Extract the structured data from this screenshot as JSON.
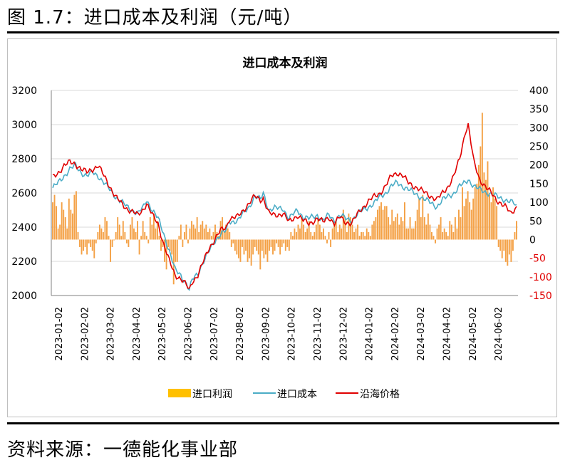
{
  "page": {
    "figure_title": "图 1.7：进口成本及利润（元/吨）",
    "source_note": "资料来源：一德能化事业部"
  },
  "chart_data": {
    "type": "line",
    "title": "进口成本及利润",
    "legend_position": "bottom",
    "y_left": {
      "min": 2000,
      "max": 3200,
      "ticks": [
        2000,
        2200,
        2400,
        2600,
        2800,
        3000,
        3200
      ]
    },
    "y_right": {
      "min": -150,
      "max": 400,
      "ticks": [
        -150,
        -100,
        -50,
        0,
        50,
        100,
        150,
        200,
        250,
        300,
        350,
        400
      ],
      "negative_color": "#e00000"
    },
    "x_tick_labels": [
      "2023-01-02",
      "2023-02-02",
      "2023-03-02",
      "2023-04-02",
      "2023-05-02",
      "2023-06-02",
      "2023-07-02",
      "2023-08-02",
      "2023-09-02",
      "2023-10-02",
      "2023-11-02",
      "2023-12-02",
      "2024-01-02",
      "2024-02-02",
      "2024-03-02",
      "2024-04-02",
      "2024-05-02",
      "2024-06-02"
    ],
    "series": [
      {
        "name": "进口利润",
        "kind": "bar",
        "axis": "right",
        "color": "#f4a146",
        "legend_color": "#ffc000",
        "values": [
          100,
          120,
          90,
          30,
          40,
          100,
          80,
          60,
          30,
          110,
          80,
          70,
          120,
          130,
          20,
          -20,
          -40,
          -30,
          -20,
          -40,
          -10,
          -20,
          -30,
          -50,
          -10,
          20,
          40,
          30,
          20,
          60,
          50,
          10,
          -60,
          -20,
          0,
          20,
          60,
          40,
          10,
          50,
          20,
          -10,
          -20,
          40,
          60,
          30,
          20,
          50,
          -40,
          10,
          50,
          20,
          10,
          -10,
          60,
          40,
          70,
          30,
          50,
          10,
          -30,
          -20,
          -60,
          -80,
          -20,
          -30,
          -40,
          -120,
          -60,
          -60,
          10,
          40,
          -20,
          20,
          40,
          -10,
          30,
          50,
          40,
          30,
          60,
          20,
          40,
          50,
          30,
          40,
          20,
          30,
          10,
          20,
          40,
          20,
          10,
          50,
          60,
          20,
          40,
          30,
          20,
          -20,
          -10,
          -30,
          -40,
          -50,
          -60,
          -20,
          -40,
          -30,
          -60,
          -50,
          -70,
          -40,
          -20,
          -30,
          -40,
          -80,
          -30,
          -50,
          -40,
          -60,
          -30,
          -20,
          -40,
          -30,
          -10,
          -20,
          -40,
          -20,
          -10,
          -30,
          -20,
          -30,
          20,
          10,
          30,
          20,
          40,
          30,
          60,
          40,
          20,
          30,
          50,
          20,
          10,
          20,
          40,
          60,
          40,
          20,
          30,
          10,
          -10,
          20,
          -20,
          30,
          40,
          50,
          20,
          40,
          30,
          80,
          60,
          20,
          70,
          60,
          40,
          20,
          30,
          40,
          10,
          20,
          20,
          10,
          30,
          20,
          10,
          40,
          50,
          60,
          80,
          90,
          100,
          80,
          90,
          90,
          60,
          40,
          80,
          50,
          60,
          70,
          40,
          60,
          50,
          100,
          30,
          30,
          60,
          30,
          30,
          50,
          80,
          110,
          60,
          120,
          60,
          40,
          70,
          40,
          20,
          10,
          -10,
          30,
          40,
          60,
          20,
          30,
          20,
          10,
          50,
          40,
          20,
          60,
          30,
          80,
          60,
          140,
          90,
          110,
          130,
          100,
          80,
          110,
          140,
          150,
          200,
          250,
          340,
          180,
          160,
          210,
          120,
          100,
          140,
          110,
          90,
          -20,
          -30,
          -50,
          -30,
          -60,
          -70,
          -40,
          -60,
          -30,
          20,
          50
        ]
      },
      {
        "name": "进口成本",
        "kind": "line",
        "axis": "left",
        "color": "#4bacc6",
        "keyframes": [
          [
            0,
            2630
          ],
          [
            4,
            2660
          ],
          [
            8,
            2700
          ],
          [
            12,
            2740
          ],
          [
            16,
            2760
          ],
          [
            20,
            2720
          ],
          [
            24,
            2700
          ],
          [
            28,
            2720
          ],
          [
            32,
            2700
          ],
          [
            36,
            2660
          ],
          [
            40,
            2620
          ],
          [
            44,
            2580
          ],
          [
            48,
            2550
          ],
          [
            52,
            2520
          ],
          [
            56,
            2500
          ],
          [
            60,
            2480
          ],
          [
            64,
            2520
          ],
          [
            66,
            2560
          ],
          [
            70,
            2500
          ],
          [
            74,
            2450
          ],
          [
            78,
            2360
          ],
          [
            82,
            2260
          ],
          [
            86,
            2150
          ],
          [
            90,
            2120
          ],
          [
            94,
            2070
          ],
          [
            96,
            2030
          ],
          [
            98,
            2090
          ],
          [
            102,
            2130
          ],
          [
            106,
            2200
          ],
          [
            110,
            2260
          ],
          [
            114,
            2320
          ],
          [
            118,
            2360
          ],
          [
            122,
            2380
          ],
          [
            124,
            2430
          ],
          [
            130,
            2440
          ],
          [
            134,
            2480
          ],
          [
            138,
            2520
          ],
          [
            142,
            2580
          ],
          [
            146,
            2560
          ],
          [
            148,
            2600
          ],
          [
            152,
            2500
          ],
          [
            156,
            2510
          ],
          [
            162,
            2510
          ],
          [
            166,
            2450
          ],
          [
            172,
            2500
          ],
          [
            176,
            2460
          ],
          [
            180,
            2450
          ],
          [
            186,
            2470
          ],
          [
            190,
            2440
          ],
          [
            194,
            2470
          ],
          [
            198,
            2440
          ],
          [
            202,
            2470
          ],
          [
            206,
            2450
          ],
          [
            210,
            2440
          ],
          [
            216,
            2490
          ],
          [
            222,
            2520
          ],
          [
            226,
            2540
          ],
          [
            230,
            2580
          ],
          [
            234,
            2600
          ],
          [
            238,
            2640
          ],
          [
            242,
            2660
          ],
          [
            246,
            2640
          ],
          [
            250,
            2620
          ],
          [
            254,
            2600
          ],
          [
            258,
            2580
          ],
          [
            262,
            2560
          ],
          [
            266,
            2540
          ],
          [
            270,
            2520
          ],
          [
            274,
            2560
          ],
          [
            278,
            2580
          ],
          [
            282,
            2600
          ],
          [
            286,
            2640
          ],
          [
            290,
            2660
          ],
          [
            292,
            2680
          ],
          [
            296,
            2640
          ],
          [
            300,
            2620
          ],
          [
            306,
            2600
          ],
          [
            312,
            2580
          ],
          [
            318,
            2560
          ],
          [
            324,
            2540
          ],
          [
            326,
            2520
          ]
        ]
      },
      {
        "name": "沿海价格",
        "kind": "line",
        "axis": "left",
        "color": "#e00000",
        "keyframes": [
          [
            0,
            2690
          ],
          [
            4,
            2720
          ],
          [
            8,
            2760
          ],
          [
            12,
            2780
          ],
          [
            16,
            2770
          ],
          [
            20,
            2740
          ],
          [
            24,
            2720
          ],
          [
            28,
            2740
          ],
          [
            32,
            2760
          ],
          [
            36,
            2700
          ],
          [
            40,
            2640
          ],
          [
            44,
            2580
          ],
          [
            48,
            2540
          ],
          [
            52,
            2510
          ],
          [
            56,
            2490
          ],
          [
            60,
            2470
          ],
          [
            64,
            2510
          ],
          [
            66,
            2540
          ],
          [
            70,
            2470
          ],
          [
            74,
            2420
          ],
          [
            78,
            2300
          ],
          [
            82,
            2200
          ],
          [
            86,
            2120
          ],
          [
            90,
            2100
          ],
          [
            94,
            2060
          ],
          [
            96,
            2030
          ],
          [
            98,
            2080
          ],
          [
            102,
            2120
          ],
          [
            106,
            2200
          ],
          [
            110,
            2280
          ],
          [
            114,
            2330
          ],
          [
            118,
            2380
          ],
          [
            122,
            2400
          ],
          [
            124,
            2450
          ],
          [
            130,
            2460
          ],
          [
            134,
            2500
          ],
          [
            138,
            2540
          ],
          [
            142,
            2580
          ],
          [
            146,
            2560
          ],
          [
            148,
            2570
          ],
          [
            152,
            2480
          ],
          [
            156,
            2470
          ],
          [
            162,
            2480
          ],
          [
            166,
            2430
          ],
          [
            172,
            2470
          ],
          [
            176,
            2440
          ],
          [
            180,
            2420
          ],
          [
            186,
            2450
          ],
          [
            190,
            2430
          ],
          [
            194,
            2460
          ],
          [
            198,
            2420
          ],
          [
            202,
            2460
          ],
          [
            206,
            2430
          ],
          [
            210,
            2420
          ],
          [
            216,
            2500
          ],
          [
            222,
            2550
          ],
          [
            226,
            2580
          ],
          [
            230,
            2600
          ],
          [
            234,
            2640
          ],
          [
            238,
            2700
          ],
          [
            242,
            2720
          ],
          [
            246,
            2700
          ],
          [
            250,
            2660
          ],
          [
            254,
            2640
          ],
          [
            258,
            2620
          ],
          [
            262,
            2600
          ],
          [
            266,
            2580
          ],
          [
            270,
            2560
          ],
          [
            274,
            2600
          ],
          [
            278,
            2640
          ],
          [
            282,
            2700
          ],
          [
            286,
            2800
          ],
          [
            290,
            2960
          ],
          [
            292,
            3000
          ],
          [
            296,
            2780
          ],
          [
            300,
            2680
          ],
          [
            306,
            2620
          ],
          [
            312,
            2560
          ],
          [
            318,
            2520
          ],
          [
            322,
            2480
          ],
          [
            326,
            2520
          ]
        ]
      }
    ]
  }
}
